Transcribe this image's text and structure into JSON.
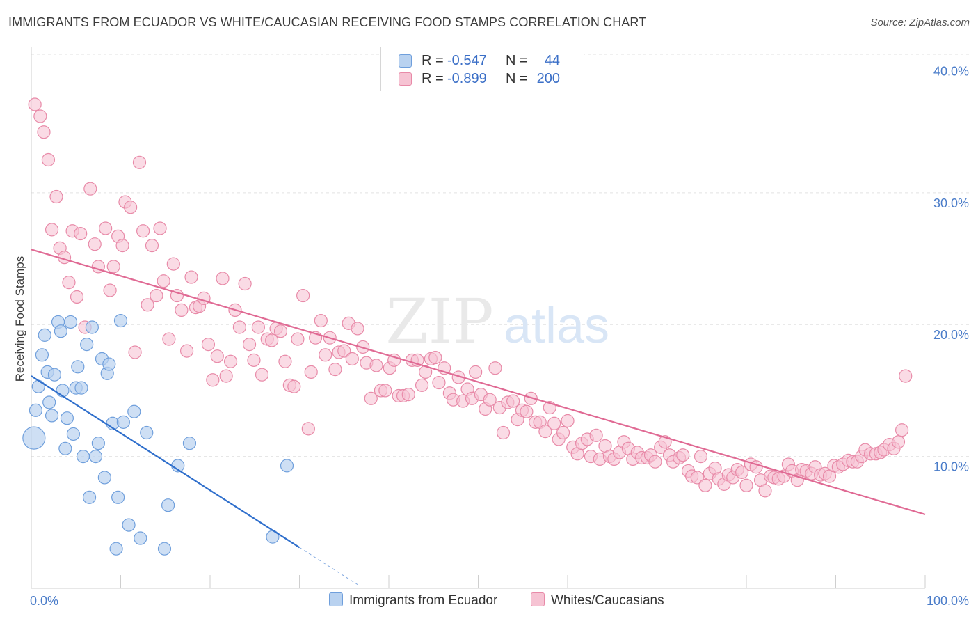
{
  "title": "IMMIGRANTS FROM ECUADOR VS WHITE/CAUCASIAN RECEIVING FOOD STAMPS CORRELATION CHART",
  "source": "Source: ZipAtlas.com",
  "watermark": {
    "zip": "ZIP",
    "atlas": "atlas"
  },
  "colors": {
    "blue_fill": "#b9d2f0",
    "blue_stroke": "#6f9fdc",
    "blue_line": "#2f6fcc",
    "pink_fill": "#f6c3d3",
    "pink_stroke": "#e88aa8",
    "pink_line": "#e06a94",
    "axis_text": "#4a7cc9",
    "grid": "#e2e2e2"
  },
  "legend": {
    "rows": [
      {
        "r_label": "R =",
        "r_value": "-0.547",
        "n_label": "N =",
        "n_value": "44"
      },
      {
        "r_label": "R =",
        "r_value": "-0.899",
        "n_label": "N =",
        "n_value": "200"
      }
    ]
  },
  "bottom_legend": [
    "Immigrants from Ecuador",
    "Whites/Caucasians"
  ],
  "chart_data": {
    "type": "scatter",
    "title": "IMMIGRANTS FROM ECUADOR VS WHITE/CAUCASIAN RECEIVING FOOD STAMPS CORRELATION CHART",
    "xlabel": "",
    "ylabel": "Receiving Food Stamps",
    "xlim": [
      0,
      100
    ],
    "ylim": [
      0,
      40.5
    ],
    "x_tick_labels": [
      "0.0%",
      "100.0%"
    ],
    "y_ticks": [
      10,
      20,
      30,
      40
    ],
    "y_tick_labels": [
      "10.0%",
      "20.0%",
      "30.0%",
      "40.0%"
    ],
    "grid": "horizontal dashed",
    "legend_position": "top-center",
    "series": [
      {
        "name": "Immigrants from Ecuador",
        "r": -0.547,
        "n": 44,
        "trend": {
          "x0": 0,
          "y0": 16.1,
          "x1": 30,
          "y1": 3.1,
          "dashed_to_x": 36.5
        },
        "points": [
          [
            0.3,
            11.4
          ],
          [
            0.5,
            13.5
          ],
          [
            0.8,
            15.3
          ],
          [
            1.2,
            17.7
          ],
          [
            1.5,
            19.2
          ],
          [
            1.8,
            16.4
          ],
          [
            2.0,
            14.1
          ],
          [
            2.3,
            13.1
          ],
          [
            2.6,
            16.2
          ],
          [
            3.0,
            20.2
          ],
          [
            3.3,
            19.5
          ],
          [
            3.5,
            15.0
          ],
          [
            3.8,
            10.6
          ],
          [
            4.0,
            12.9
          ],
          [
            4.4,
            20.2
          ],
          [
            4.7,
            11.7
          ],
          [
            5.0,
            15.2
          ],
          [
            5.2,
            16.8
          ],
          [
            5.6,
            15.2
          ],
          [
            5.8,
            10.0
          ],
          [
            6.2,
            18.5
          ],
          [
            6.5,
            6.9
          ],
          [
            6.8,
            19.8
          ],
          [
            7.2,
            10.0
          ],
          [
            7.5,
            11.0
          ],
          [
            7.9,
            17.4
          ],
          [
            8.2,
            8.4
          ],
          [
            8.5,
            16.3
          ],
          [
            8.7,
            17.0
          ],
          [
            9.1,
            12.5
          ],
          [
            9.5,
            3.0
          ],
          [
            9.7,
            6.9
          ],
          [
            10.0,
            20.3
          ],
          [
            10.3,
            12.6
          ],
          [
            10.9,
            4.8
          ],
          [
            11.5,
            13.4
          ],
          [
            12.2,
            3.8
          ],
          [
            12.9,
            11.8
          ],
          [
            14.9,
            3.0
          ],
          [
            15.3,
            6.3
          ],
          [
            16.4,
            9.3
          ],
          [
            17.7,
            11.0
          ],
          [
            27.0,
            3.9
          ],
          [
            28.6,
            9.3
          ]
        ]
      },
      {
        "name": "Whites/Caucasians",
        "r": -0.899,
        "n": 200,
        "trend": {
          "x0": 0,
          "y0": 25.7,
          "x1": 100,
          "y1": 5.6
        },
        "points": [
          [
            0.4,
            36.7
          ],
          [
            1.0,
            35.8
          ],
          [
            1.4,
            34.6
          ],
          [
            1.9,
            32.5
          ],
          [
            2.3,
            27.2
          ],
          [
            2.8,
            29.7
          ],
          [
            3.2,
            25.8
          ],
          [
            3.7,
            25.1
          ],
          [
            4.2,
            23.2
          ],
          [
            4.6,
            27.1
          ],
          [
            5.1,
            22.1
          ],
          [
            5.5,
            26.9
          ],
          [
            6.0,
            19.8
          ],
          [
            6.6,
            30.3
          ],
          [
            7.1,
            26.1
          ],
          [
            7.5,
            24.4
          ],
          [
            8.3,
            27.3
          ],
          [
            8.8,
            22.6
          ],
          [
            9.2,
            24.4
          ],
          [
            9.7,
            26.7
          ],
          [
            10.2,
            26.0
          ],
          [
            10.5,
            29.3
          ],
          [
            11.1,
            28.9
          ],
          [
            11.6,
            17.9
          ],
          [
            12.1,
            32.3
          ],
          [
            12.5,
            27.1
          ],
          [
            13.0,
            21.5
          ],
          [
            13.5,
            26.0
          ],
          [
            14.0,
            22.2
          ],
          [
            14.4,
            27.3
          ],
          [
            14.8,
            23.3
          ],
          [
            15.4,
            18.9
          ],
          [
            15.9,
            24.6
          ],
          [
            16.3,
            22.2
          ],
          [
            16.8,
            21.1
          ],
          [
            17.4,
            18.0
          ],
          [
            17.9,
            23.6
          ],
          [
            18.4,
            21.3
          ],
          [
            18.8,
            21.4
          ],
          [
            19.3,
            22.0
          ],
          [
            19.8,
            18.5
          ],
          [
            20.3,
            15.8
          ],
          [
            20.8,
            17.6
          ],
          [
            21.4,
            23.5
          ],
          [
            21.8,
            16.1
          ],
          [
            22.3,
            17.2
          ],
          [
            22.8,
            21.1
          ],
          [
            23.3,
            19.8
          ],
          [
            23.9,
            23.1
          ],
          [
            24.4,
            18.5
          ],
          [
            24.9,
            17.3
          ],
          [
            25.4,
            19.8
          ],
          [
            25.8,
            16.2
          ],
          [
            26.4,
            18.9
          ],
          [
            26.9,
            18.8
          ],
          [
            27.4,
            19.7
          ],
          [
            27.9,
            19.5
          ],
          [
            28.4,
            17.2
          ],
          [
            28.9,
            15.4
          ],
          [
            29.4,
            15.3
          ],
          [
            29.8,
            18.9
          ],
          [
            30.4,
            22.2
          ],
          [
            31.0,
            12.1
          ],
          [
            31.3,
            16.4
          ],
          [
            31.8,
            19.0
          ],
          [
            32.4,
            20.3
          ],
          [
            32.9,
            17.7
          ],
          [
            33.4,
            19.0
          ],
          [
            34.0,
            16.6
          ],
          [
            34.4,
            17.9
          ],
          [
            35.0,
            18.0
          ],
          [
            35.5,
            20.1
          ],
          [
            35.9,
            17.4
          ],
          [
            36.5,
            19.7
          ],
          [
            37.1,
            18.3
          ],
          [
            37.5,
            17.1
          ],
          [
            38.0,
            14.4
          ],
          [
            38.6,
            16.9
          ],
          [
            39.1,
            15.0
          ],
          [
            39.6,
            15.0
          ],
          [
            40.1,
            16.7
          ],
          [
            40.6,
            17.3
          ],
          [
            41.1,
            14.6
          ],
          [
            41.6,
            14.6
          ],
          [
            42.2,
            14.7
          ],
          [
            42.6,
            17.3
          ],
          [
            43.2,
            17.3
          ],
          [
            43.7,
            15.4
          ],
          [
            44.1,
            16.4
          ],
          [
            44.7,
            17.4
          ],
          [
            45.2,
            17.5
          ],
          [
            45.6,
            15.6
          ],
          [
            46.2,
            16.7
          ],
          [
            46.8,
            14.8
          ],
          [
            47.2,
            14.3
          ],
          [
            47.8,
            16.0
          ],
          [
            48.3,
            14.2
          ],
          [
            48.8,
            15.1
          ],
          [
            49.3,
            14.4
          ],
          [
            49.7,
            16.4
          ],
          [
            50.3,
            14.7
          ],
          [
            50.8,
            13.6
          ],
          [
            51.3,
            14.3
          ],
          [
            51.9,
            16.7
          ],
          [
            52.4,
            13.7
          ],
          [
            52.8,
            11.8
          ],
          [
            53.3,
            14.1
          ],
          [
            53.9,
            14.2
          ],
          [
            54.4,
            12.8
          ],
          [
            54.9,
            13.5
          ],
          [
            55.4,
            13.4
          ],
          [
            55.9,
            14.4
          ],
          [
            56.4,
            12.6
          ],
          [
            56.9,
            12.6
          ],
          [
            57.5,
            11.9
          ],
          [
            58.0,
            13.7
          ],
          [
            58.5,
            12.5
          ],
          [
            59.0,
            11.3
          ],
          [
            59.5,
            11.8
          ],
          [
            60.0,
            12.7
          ],
          [
            60.6,
            10.7
          ],
          [
            61.1,
            10.2
          ],
          [
            61.6,
            11.0
          ],
          [
            62.2,
            11.3
          ],
          [
            62.6,
            10.0
          ],
          [
            63.2,
            11.6
          ],
          [
            63.6,
            9.8
          ],
          [
            64.2,
            10.8
          ],
          [
            64.7,
            10.0
          ],
          [
            65.2,
            9.8
          ],
          [
            65.8,
            10.3
          ],
          [
            66.3,
            11.1
          ],
          [
            66.8,
            10.6
          ],
          [
            67.3,
            9.8
          ],
          [
            67.8,
            10.3
          ],
          [
            68.3,
            9.9
          ],
          [
            68.9,
            9.9
          ],
          [
            69.3,
            10.1
          ],
          [
            69.8,
            9.6
          ],
          [
            70.4,
            10.7
          ],
          [
            70.9,
            11.1
          ],
          [
            71.4,
            10.1
          ],
          [
            71.8,
            9.6
          ],
          [
            72.5,
            9.9
          ],
          [
            72.9,
            10.1
          ],
          [
            73.5,
            8.9
          ],
          [
            73.9,
            8.5
          ],
          [
            74.5,
            8.4
          ],
          [
            74.9,
            10.0
          ],
          [
            75.4,
            7.8
          ],
          [
            75.9,
            8.7
          ],
          [
            76.5,
            9.1
          ],
          [
            76.9,
            8.3
          ],
          [
            77.5,
            7.9
          ],
          [
            78.0,
            8.6
          ],
          [
            78.5,
            8.4
          ],
          [
            79.0,
            9.0
          ],
          [
            79.5,
            8.8
          ],
          [
            80.0,
            7.8
          ],
          [
            80.5,
            9.4
          ],
          [
            81.1,
            9.2
          ],
          [
            81.6,
            8.2
          ],
          [
            82.1,
            7.4
          ],
          [
            82.7,
            8.5
          ],
          [
            83.1,
            8.4
          ],
          [
            83.6,
            8.3
          ],
          [
            84.2,
            8.5
          ],
          [
            84.7,
            9.4
          ],
          [
            85.1,
            8.9
          ],
          [
            85.7,
            8.2
          ],
          [
            86.2,
            9.0
          ],
          [
            86.7,
            8.9
          ],
          [
            87.3,
            8.7
          ],
          [
            87.7,
            9.2
          ],
          [
            88.3,
            8.6
          ],
          [
            88.8,
            8.7
          ],
          [
            89.3,
            8.5
          ],
          [
            89.8,
            9.3
          ],
          [
            90.3,
            9.2
          ],
          [
            90.8,
            9.4
          ],
          [
            91.4,
            9.7
          ],
          [
            91.9,
            9.6
          ],
          [
            92.4,
            9.6
          ],
          [
            92.9,
            10.0
          ],
          [
            93.3,
            10.5
          ],
          [
            93.9,
            10.2
          ],
          [
            94.5,
            10.2
          ],
          [
            95.0,
            10.3
          ],
          [
            95.4,
            10.5
          ],
          [
            96.0,
            10.9
          ],
          [
            96.5,
            10.6
          ],
          [
            97.0,
            11.1
          ],
          [
            97.4,
            12.0
          ],
          [
            97.8,
            16.1
          ]
        ]
      }
    ]
  }
}
